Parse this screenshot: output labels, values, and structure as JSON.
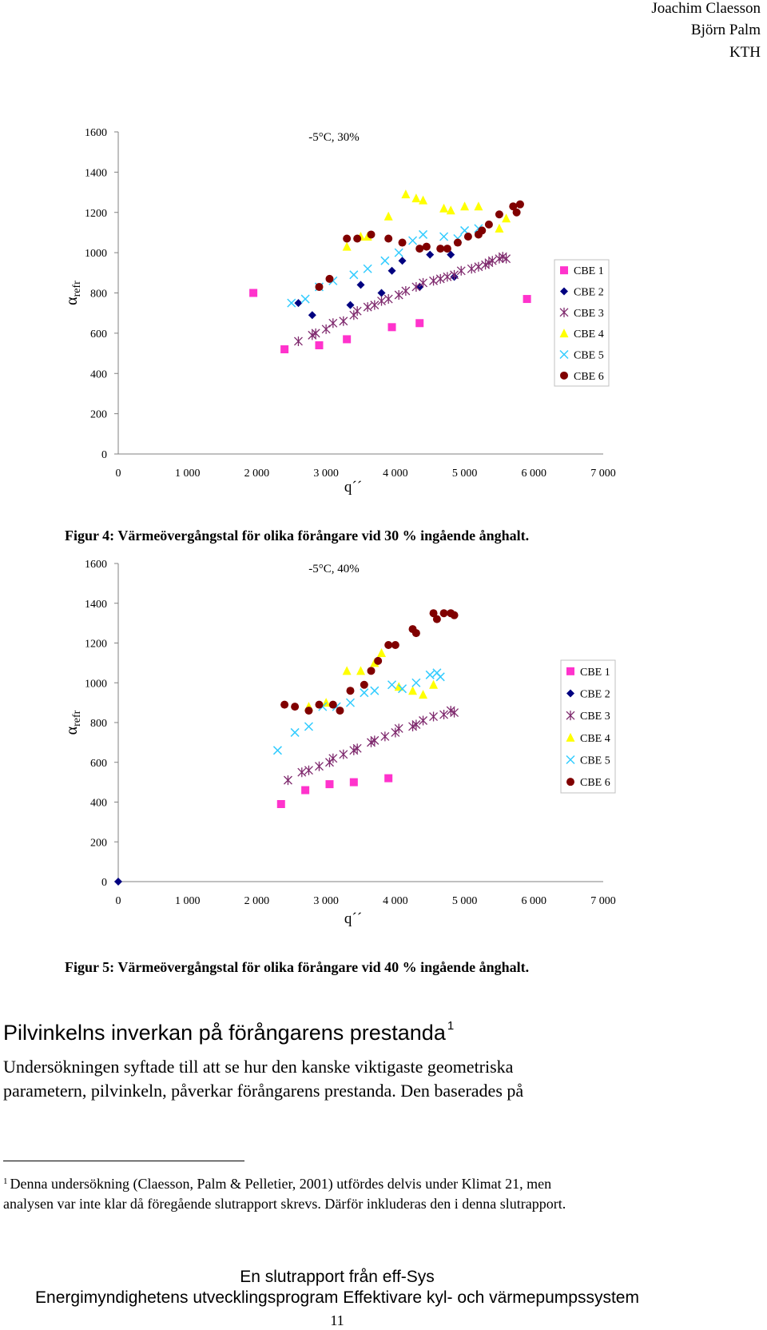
{
  "header": {
    "author1": "Joachim Claesson",
    "author2": "Björn Palm",
    "institution": "KTH"
  },
  "figure4": {
    "caption": "Figur 4: Värmeövergångstal för olika förångare vid 30 % ingående ånghalt."
  },
  "figure5": {
    "caption": "Figur 5: Värmeövergångstal för olika förångare vid 40 % ingående ånghalt."
  },
  "section": {
    "title": "Pilvinkelns inverkan på förångarens prestanda",
    "footnote_ref": "1",
    "body_line1": "Undersökningen syftade till att se hur den kanske viktigaste geometriska",
    "body_line2": "parametern, pilvinkeln, påverkar förångarens prestanda. Den baserades på"
  },
  "footnote": {
    "marker": "1",
    "line1": "Denna undersökning (Claesson, Palm & Pelletier, 2001) utfördes delvis under Klimat 21, men",
    "line2": "analysen var inte klar då föregående slutrapport skrevs. Därför inkluderas den i denna slutrapport."
  },
  "footer": {
    "line1": "En slutrapport från eff-Sys",
    "line2": "Energimyndighetens utvecklingsprogram Effektivare kyl- och värmepumpssystem",
    "page_number": "11"
  },
  "chart_data": [
    {
      "type": "scatter",
      "title": "-5°C, 30%",
      "xlabel": "q´´",
      "ylabel_main": "α",
      "ylabel_sub": "refr",
      "xlim": [
        0,
        7000
      ],
      "ylim": [
        0,
        1600
      ],
      "x_ticks": [
        0,
        1000,
        2000,
        3000,
        4000,
        5000,
        6000,
        7000
      ],
      "x_tick_labels": [
        "0",
        "1 000",
        "2 000",
        "3 000",
        "4 000",
        "5 000",
        "6 000",
        "7 000"
      ],
      "y_ticks": [
        0,
        200,
        400,
        600,
        800,
        1000,
        1200,
        1400,
        1600
      ],
      "y_tick_labels": [
        "0",
        "200",
        "400",
        "600",
        "800",
        "1000",
        "1200",
        "1400",
        "1600"
      ],
      "grid": false,
      "legend_position": "right",
      "series": [
        {
          "name": "CBE 1",
          "marker": "square",
          "color": "#ff33cc",
          "x": [
            1950,
            2400,
            2900,
            3300,
            3950,
            4350,
            5900
          ],
          "y": [
            800,
            520,
            540,
            570,
            630,
            650,
            770
          ]
        },
        {
          "name": "CBE 2",
          "marker": "diamond",
          "color": "#000080",
          "x": [
            2600,
            2800,
            3350,
            3500,
            3800,
            3950,
            4100,
            4350,
            4500,
            4800,
            4850
          ],
          "y": [
            750,
            690,
            740,
            840,
            800,
            910,
            960,
            830,
            990,
            990,
            880
          ]
        },
        {
          "name": "CBE 3",
          "marker": "asterisk",
          "color": "#7f2a6e",
          "x": [
            2600,
            2800,
            2850,
            3000,
            3100,
            3250,
            3400,
            3450,
            3600,
            3700,
            3800,
            3900,
            4050,
            4150,
            4300,
            4400,
            4550,
            4650,
            4750,
            4850,
            4950,
            5100,
            5200,
            5300,
            5350,
            5400,
            5500,
            5550,
            5600
          ],
          "y": [
            560,
            590,
            600,
            620,
            650,
            660,
            690,
            710,
            730,
            740,
            760,
            770,
            790,
            810,
            830,
            850,
            860,
            870,
            880,
            890,
            910,
            920,
            930,
            940,
            950,
            960,
            970,
            980,
            970
          ]
        },
        {
          "name": "CBE 4",
          "marker": "triangle",
          "color": "#ffff00",
          "x": [
            3300,
            3500,
            3600,
            3900,
            4150,
            4300,
            4400,
            4700,
            4800,
            5000,
            5200,
            5500,
            5600
          ],
          "y": [
            1030,
            1080,
            1080,
            1180,
            1290,
            1270,
            1260,
            1220,
            1210,
            1230,
            1230,
            1120,
            1170
          ]
        },
        {
          "name": "CBE 5",
          "marker": "x",
          "color": "#33ccff",
          "x": [
            2500,
            2700,
            2900,
            3100,
            3400,
            3600,
            3850,
            4050,
            4250,
            4400,
            4700,
            4900,
            5000,
            5200
          ],
          "y": [
            750,
            770,
            830,
            860,
            890,
            920,
            960,
            1000,
            1060,
            1090,
            1080,
            1070,
            1110,
            1120
          ]
        },
        {
          "name": "CBE 6",
          "marker": "circle",
          "color": "#800000",
          "x": [
            2900,
            3050,
            3300,
            3450,
            3650,
            3900,
            4100,
            4350,
            4450,
            4650,
            4750,
            4900,
            5050,
            5200,
            5250,
            5350,
            5500,
            5700,
            5800,
            5750
          ],
          "y": [
            830,
            870,
            1070,
            1070,
            1090,
            1070,
            1050,
            1020,
            1030,
            1020,
            1020,
            1050,
            1080,
            1090,
            1110,
            1140,
            1190,
            1230,
            1240,
            1200
          ]
        }
      ]
    },
    {
      "type": "scatter",
      "title": "-5°C, 40%",
      "xlabel": "q´´",
      "ylabel_main": "α",
      "ylabel_sub": "refr",
      "xlim": [
        0,
        7000
      ],
      "ylim": [
        0,
        1600
      ],
      "x_ticks": [
        0,
        1000,
        2000,
        3000,
        4000,
        5000,
        6000,
        7000
      ],
      "x_tick_labels": [
        "0",
        "1 000",
        "2 000",
        "3 000",
        "4 000",
        "5 000",
        "6 000",
        "7 000"
      ],
      "y_ticks": [
        0,
        200,
        400,
        600,
        800,
        1000,
        1200,
        1400,
        1600
      ],
      "y_tick_labels": [
        "0",
        "200",
        "400",
        "600",
        "800",
        "1000",
        "1200",
        "1400",
        "1600"
      ],
      "grid": false,
      "legend_position": "right",
      "series": [
        {
          "name": "CBE 1",
          "marker": "square",
          "color": "#ff33cc",
          "x": [
            2350,
            2700,
            3050,
            3400,
            3900
          ],
          "y": [
            390,
            460,
            490,
            500,
            520
          ]
        },
        {
          "name": "CBE 2",
          "marker": "diamond",
          "color": "#000080",
          "x": [
            0
          ],
          "y": [
            0
          ]
        },
        {
          "name": "CBE 3",
          "marker": "asterisk",
          "color": "#7f2a6e",
          "x": [
            2450,
            2650,
            2750,
            2900,
            3050,
            3100,
            3250,
            3400,
            3450,
            3650,
            3700,
            3850,
            4000,
            4050,
            4250,
            4300,
            4400,
            4550,
            4700,
            4800,
            4850
          ],
          "y": [
            510,
            550,
            560,
            580,
            600,
            620,
            640,
            660,
            670,
            700,
            710,
            730,
            750,
            770,
            780,
            790,
            810,
            830,
            840,
            860,
            850
          ]
        },
        {
          "name": "CBE 4",
          "marker": "triangle",
          "color": "#ffff00",
          "x": [
            2750,
            3000,
            3300,
            3500,
            3700,
            3800,
            4050,
            4250,
            4400,
            4550
          ],
          "y": [
            880,
            900,
            1060,
            1060,
            1100,
            1150,
            980,
            960,
            940,
            990
          ]
        },
        {
          "name": "CBE 5",
          "marker": "x",
          "color": "#33ccff",
          "x": [
            2300,
            2550,
            2750,
            2950,
            3150,
            3350,
            3550,
            3700,
            3950,
            4100,
            4300,
            4500,
            4600,
            4650
          ],
          "y": [
            660,
            750,
            780,
            880,
            880,
            900,
            950,
            960,
            990,
            970,
            1000,
            1040,
            1050,
            1030
          ]
        },
        {
          "name": "CBE 6",
          "marker": "circle",
          "color": "#800000",
          "x": [
            2400,
            2550,
            2750,
            2900,
            3100,
            3200,
            3350,
            3550,
            3650,
            3750,
            3900,
            4000,
            4250,
            4300,
            4550,
            4600,
            4700,
            4800,
            4850
          ],
          "y": [
            890,
            880,
            860,
            890,
            890,
            860,
            960,
            990,
            1060,
            1110,
            1190,
            1190,
            1270,
            1250,
            1350,
            1320,
            1350,
            1350,
            1340
          ]
        }
      ]
    }
  ]
}
